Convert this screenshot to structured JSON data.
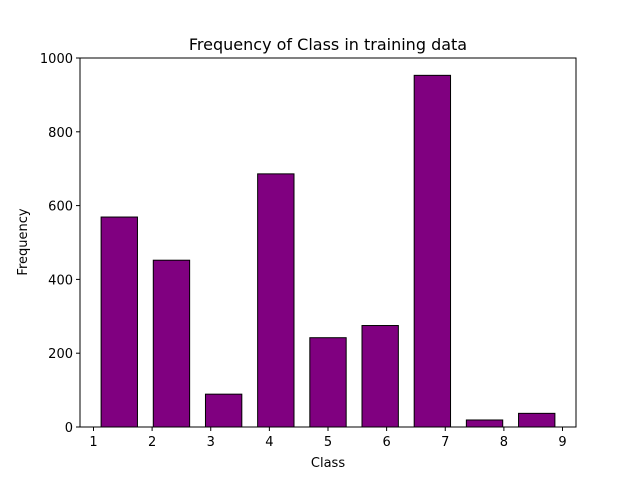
{
  "chart_data": {
    "type": "bar",
    "title": "Frequency of Class in training data",
    "xlabel": "Class",
    "ylabel": "Frequency",
    "x_ticks": [
      1,
      2,
      3,
      4,
      5,
      6,
      7,
      8,
      9
    ],
    "y_ticks": [
      0,
      200,
      400,
      600,
      800,
      1000
    ],
    "xlim": [
      0.77,
      9.23
    ],
    "ylim": [
      0,
      1000
    ],
    "bar_centers": [
      1.44,
      2.33,
      3.22,
      4.11,
      5.0,
      5.89,
      6.78,
      7.67,
      8.56
    ],
    "bar_width": 0.62,
    "values": [
      569,
      452,
      89,
      686,
      242,
      275,
      953,
      19,
      37
    ],
    "bar_color": "#800080",
    "edge_color": "#000000",
    "grid": false,
    "legend": "none"
  }
}
